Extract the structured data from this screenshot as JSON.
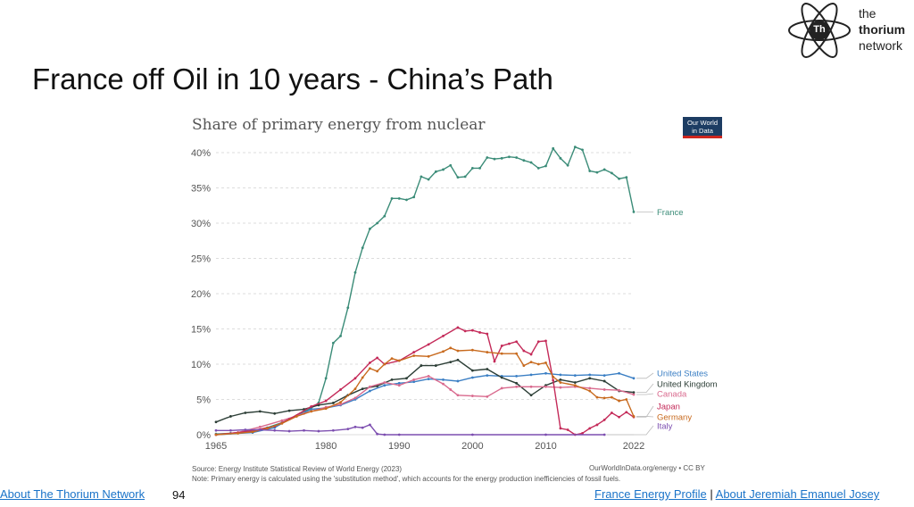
{
  "slide": {
    "title": "France off Oil in 10 years - China’s Path",
    "page_number": "94"
  },
  "logo": {
    "mark": "Th",
    "line1": "the",
    "line2": "thorium",
    "line3": "network",
    "icon": "atom-icon"
  },
  "owid_badge": {
    "line1": "Our World",
    "line2": "in Data"
  },
  "footer": {
    "left_link": "About The Thorium Network",
    "right_link1": "France Energy Profile",
    "separator": "|",
    "right_link2": "About Jeremiah Emanuel Josey"
  },
  "chart_data": {
    "type": "line",
    "title": "Share of primary energy from nuclear",
    "source": "Source: Energy Institute Statistical Review of World Energy (2023)",
    "note": "Note: Primary energy is calculated using the 'substitution method', which accounts for the energy production inefficiencies of fossil fuels.",
    "credit": "OurWorldInData.org/energy • CC BY",
    "xlim": [
      1965,
      2022
    ],
    "ylim": [
      0,
      40
    ],
    "x_ticks": [
      1965,
      1980,
      1990,
      2000,
      2010,
      2022
    ],
    "y_ticks": [
      "0%",
      "5%",
      "10%",
      "15%",
      "20%",
      "25%",
      "30%",
      "35%",
      "40%"
    ],
    "y_tick_values": [
      0,
      5,
      10,
      15,
      20,
      25,
      30,
      35,
      40
    ],
    "grid": true,
    "legend": "right, labels at line ends",
    "series": [
      {
        "name": "France",
        "color": "#3b8c78",
        "points": [
          [
            1965,
            0.1
          ],
          [
            1967,
            0.2
          ],
          [
            1970,
            0.5
          ],
          [
            1972,
            1
          ],
          [
            1974,
            1.7
          ],
          [
            1976,
            2.7
          ],
          [
            1978,
            3.8
          ],
          [
            1979,
            4.5
          ],
          [
            1980,
            8
          ],
          [
            1981,
            13
          ],
          [
            1982,
            14
          ],
          [
            1983,
            18
          ],
          [
            1984,
            23
          ],
          [
            1985,
            26.5
          ],
          [
            1986,
            29.2
          ],
          [
            1987,
            30
          ],
          [
            1988,
            31
          ],
          [
            1989,
            33.5
          ],
          [
            1990,
            33.5
          ],
          [
            1991,
            33.3
          ],
          [
            1992,
            33.7
          ],
          [
            1993,
            36.6
          ],
          [
            1994,
            36.2
          ],
          [
            1995,
            37.3
          ],
          [
            1996,
            37.6
          ],
          [
            1997,
            38.2
          ],
          [
            1998,
            36.5
          ],
          [
            1999,
            36.6
          ],
          [
            2000,
            37.8
          ],
          [
            2001,
            37.8
          ],
          [
            2002,
            39.3
          ],
          [
            2003,
            39.1
          ],
          [
            2004,
            39.2
          ],
          [
            2005,
            39.4
          ],
          [
            2006,
            39.3
          ],
          [
            2007,
            38.9
          ],
          [
            2008,
            38.6
          ],
          [
            2009,
            37.8
          ],
          [
            2010,
            38.1
          ],
          [
            2011,
            40.6
          ],
          [
            2012,
            39.2
          ],
          [
            2013,
            38.2
          ],
          [
            2014,
            40.8
          ],
          [
            2015,
            40.4
          ],
          [
            2016,
            37.4
          ],
          [
            2017,
            37.2
          ],
          [
            2018,
            37.6
          ],
          [
            2019,
            37.1
          ],
          [
            2020,
            36.3
          ],
          [
            2021,
            36.5
          ],
          [
            2022,
            31.6
          ]
        ]
      },
      {
        "name": "United States",
        "color": "#3b7fc4",
        "points": [
          [
            1965,
            0
          ],
          [
            1970,
            0.3
          ],
          [
            1973,
            1
          ],
          [
            1975,
            2.2
          ],
          [
            1978,
            3.6
          ],
          [
            1980,
            3.8
          ],
          [
            1982,
            4.2
          ],
          [
            1984,
            5
          ],
          [
            1986,
            6.2
          ],
          [
            1988,
            7
          ],
          [
            1990,
            7.3
          ],
          [
            1992,
            7.5
          ],
          [
            1994,
            7.9
          ],
          [
            1996,
            7.8
          ],
          [
            1998,
            7.6
          ],
          [
            2000,
            8.1
          ],
          [
            2002,
            8.4
          ],
          [
            2004,
            8.3
          ],
          [
            2006,
            8.3
          ],
          [
            2008,
            8.5
          ],
          [
            2010,
            8.7
          ],
          [
            2012,
            8.5
          ],
          [
            2014,
            8.4
          ],
          [
            2016,
            8.5
          ],
          [
            2018,
            8.4
          ],
          [
            2020,
            8.7
          ],
          [
            2022,
            8
          ]
        ]
      },
      {
        "name": "United Kingdom",
        "color": "#2c3e36",
        "points": [
          [
            1965,
            1.8
          ],
          [
            1967,
            2.6
          ],
          [
            1969,
            3.1
          ],
          [
            1971,
            3.3
          ],
          [
            1973,
            3
          ],
          [
            1975,
            3.4
          ],
          [
            1977,
            3.6
          ],
          [
            1979,
            4.2
          ],
          [
            1981,
            4.5
          ],
          [
            1983,
            5.6
          ],
          [
            1985,
            6.5
          ],
          [
            1987,
            6.9
          ],
          [
            1989,
            7.8
          ],
          [
            1991,
            8
          ],
          [
            1993,
            9.8
          ],
          [
            1995,
            9.8
          ],
          [
            1997,
            10.3
          ],
          [
            1998,
            10.6
          ],
          [
            2000,
            9.1
          ],
          [
            2002,
            9.3
          ],
          [
            2004,
            8.1
          ],
          [
            2006,
            7.3
          ],
          [
            2008,
            5.6
          ],
          [
            2010,
            7
          ],
          [
            2012,
            7.8
          ],
          [
            2014,
            7.4
          ],
          [
            2016,
            8
          ],
          [
            2018,
            7.6
          ],
          [
            2020,
            6.2
          ],
          [
            2022,
            6
          ]
        ]
      },
      {
        "name": "Canada",
        "color": "#d96a8e",
        "points": [
          [
            1965,
            0
          ],
          [
            1968,
            0.3
          ],
          [
            1971,
            1.1
          ],
          [
            1974,
            2
          ],
          [
            1977,
            3
          ],
          [
            1980,
            3.9
          ],
          [
            1982,
            4.3
          ],
          [
            1984,
            5.2
          ],
          [
            1986,
            6.8
          ],
          [
            1988,
            7.4
          ],
          [
            1990,
            7
          ],
          [
            1992,
            7.8
          ],
          [
            1994,
            8.3
          ],
          [
            1996,
            7.2
          ],
          [
            1997,
            6.4
          ],
          [
            1998,
            5.6
          ],
          [
            2000,
            5.5
          ],
          [
            2002,
            5.4
          ],
          [
            2004,
            6.6
          ],
          [
            2006,
            6.8
          ],
          [
            2008,
            6.8
          ],
          [
            2010,
            6.8
          ],
          [
            2012,
            6.7
          ],
          [
            2014,
            6.8
          ],
          [
            2016,
            6.6
          ],
          [
            2018,
            6.4
          ],
          [
            2020,
            6.3
          ],
          [
            2022,
            5.7
          ]
        ]
      },
      {
        "name": "Japan",
        "color": "#c42a59",
        "points": [
          [
            1965,
            0
          ],
          [
            1968,
            0.3
          ],
          [
            1970,
            0.6
          ],
          [
            1973,
            1.2
          ],
          [
            1975,
            2.2
          ],
          [
            1978,
            4
          ],
          [
            1980,
            4.8
          ],
          [
            1982,
            6.4
          ],
          [
            1984,
            8
          ],
          [
            1986,
            10.2
          ],
          [
            1987,
            10.9
          ],
          [
            1988,
            10
          ],
          [
            1990,
            10.5
          ],
          [
            1992,
            11.7
          ],
          [
            1994,
            12.8
          ],
          [
            1996,
            14
          ],
          [
            1998,
            15.2
          ],
          [
            1999,
            14.7
          ],
          [
            2000,
            14.8
          ],
          [
            2001,
            14.5
          ],
          [
            2002,
            14.3
          ],
          [
            2003,
            10.4
          ],
          [
            2004,
            12.6
          ],
          [
            2005,
            12.9
          ],
          [
            2006,
            13.2
          ],
          [
            2007,
            11.9
          ],
          [
            2008,
            11.4
          ],
          [
            2009,
            13.2
          ],
          [
            2010,
            13.3
          ],
          [
            2011,
            7.7
          ],
          [
            2012,
            0.9
          ],
          [
            2013,
            0.7
          ],
          [
            2014,
            0
          ],
          [
            2015,
            0.2
          ],
          [
            2016,
            0.9
          ],
          [
            2017,
            1.4
          ],
          [
            2018,
            2.1
          ],
          [
            2019,
            3.1
          ],
          [
            2020,
            2.5
          ],
          [
            2021,
            3.2
          ],
          [
            2022,
            2.5
          ]
        ]
      },
      {
        "name": "Germany",
        "color": "#c86a1e",
        "points": [
          [
            1965,
            0
          ],
          [
            1968,
            0.2
          ],
          [
            1970,
            0.4
          ],
          [
            1972,
            0.9
          ],
          [
            1974,
            1.6
          ],
          [
            1976,
            2.6
          ],
          [
            1978,
            3.3
          ],
          [
            1980,
            3.7
          ],
          [
            1982,
            4.6
          ],
          [
            1984,
            6.5
          ],
          [
            1985,
            8.1
          ],
          [
            1986,
            9.4
          ],
          [
            1987,
            9
          ],
          [
            1988,
            10
          ],
          [
            1989,
            10.8
          ],
          [
            1990,
            10.5
          ],
          [
            1992,
            11.2
          ],
          [
            1994,
            11.1
          ],
          [
            1996,
            11.8
          ],
          [
            1997,
            12.3
          ],
          [
            1998,
            11.9
          ],
          [
            2000,
            12
          ],
          [
            2002,
            11.7
          ],
          [
            2004,
            11.5
          ],
          [
            2006,
            11.5
          ],
          [
            2007,
            9.8
          ],
          [
            2008,
            10.3
          ],
          [
            2009,
            10
          ],
          [
            2010,
            10.2
          ],
          [
            2011,
            8.2
          ],
          [
            2012,
            7.4
          ],
          [
            2014,
            7
          ],
          [
            2016,
            6.2
          ],
          [
            2017,
            5.3
          ],
          [
            2018,
            5.2
          ],
          [
            2019,
            5.3
          ],
          [
            2020,
            4.8
          ],
          [
            2021,
            5
          ],
          [
            2022,
            2.6
          ]
        ]
      },
      {
        "name": "Italy",
        "color": "#7d4fb0",
        "points": [
          [
            1965,
            0.6
          ],
          [
            1967,
            0.6
          ],
          [
            1969,
            0.7
          ],
          [
            1971,
            0.7
          ],
          [
            1973,
            0.6
          ],
          [
            1975,
            0.5
          ],
          [
            1977,
            0.6
          ],
          [
            1979,
            0.5
          ],
          [
            1981,
            0.6
          ],
          [
            1983,
            0.8
          ],
          [
            1984,
            1.1
          ],
          [
            1985,
            1
          ],
          [
            1986,
            1.4
          ],
          [
            1987,
            0.1
          ],
          [
            1988,
            0
          ],
          [
            1990,
            0
          ],
          [
            2000,
            0
          ],
          [
            2010,
            0
          ],
          [
            2018,
            0
          ]
        ]
      }
    ]
  }
}
